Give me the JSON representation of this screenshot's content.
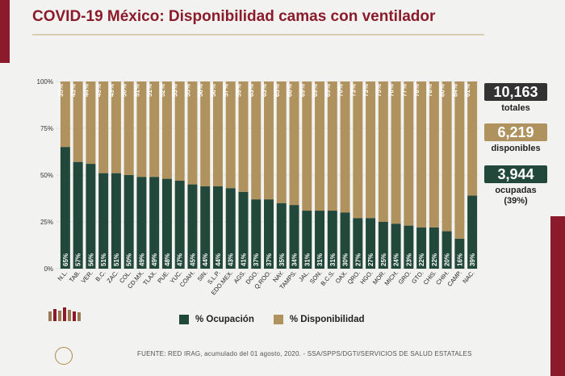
{
  "title": "COVID-19 México: Disponibilidad camas con ventilador",
  "colors": {
    "ocupacion": "#22473b",
    "disponibilidad": "#b0925f",
    "accent": "#8b1a2b",
    "totales_box": "#333333"
  },
  "stats": {
    "totales": {
      "value": "10,163",
      "label": "totales"
    },
    "disponibles": {
      "value": "6,219",
      "label": "disponibles"
    },
    "ocupadas": {
      "value": "3,944",
      "label": "ocupadas",
      "sub": "(39%)"
    }
  },
  "legend": {
    "ocupacion": "% Ocupación",
    "disponibilidad": "% Disponibilidad"
  },
  "footer": "FUENTE: RED IRAG, acumulado del 01 agosto, 2020.  -  SSA/SPPS/DGTI/SERVICIOS DE SALUD ESTATALES",
  "chart_data": {
    "type": "bar",
    "stacked": true,
    "categories": [
      "N.L.",
      "TAB.",
      "VER.",
      "B.C.",
      "ZAC.",
      "COL.",
      "CD.MX.",
      "TLAX.",
      "PUE.",
      "YUC.",
      "COAH.",
      "SIN.",
      "S.L.P.",
      "EDO.MEX.",
      "AGS.",
      "DGO.",
      "Q.ROO.",
      "NAY.",
      "TAMPS.",
      "JAL.",
      "SON.",
      "B.C.S.",
      "OAX.",
      "QRO.",
      "HGO.",
      "MOR.",
      "MICH.",
      "GRO.",
      "GTO.",
      "CHIS.",
      "CHIH.",
      "CAMP.",
      "NAC."
    ],
    "series": [
      {
        "name": "% Ocupación",
        "values": [
          65,
          57,
          56,
          51,
          51,
          50,
          49,
          49,
          48,
          47,
          45,
          44,
          44,
          43,
          41,
          37,
          37,
          35,
          34,
          31,
          31,
          31,
          30,
          27,
          27,
          25,
          24,
          23,
          22,
          22,
          20,
          16,
          39
        ]
      },
      {
        "name": "% Disponibilidad",
        "values": [
          35,
          43,
          44,
          49,
          49,
          50,
          51,
          51,
          52,
          53,
          55,
          56,
          56,
          57,
          59,
          63,
          63,
          65,
          66,
          69,
          69,
          69,
          70,
          73,
          73,
          75,
          76,
          77,
          78,
          78,
          80,
          84,
          61
        ]
      }
    ],
    "yticks": [
      "0%",
      "25%",
      "50%",
      "75%",
      "100%"
    ],
    "ylim": [
      0,
      100
    ],
    "legend_position": "bottom"
  }
}
